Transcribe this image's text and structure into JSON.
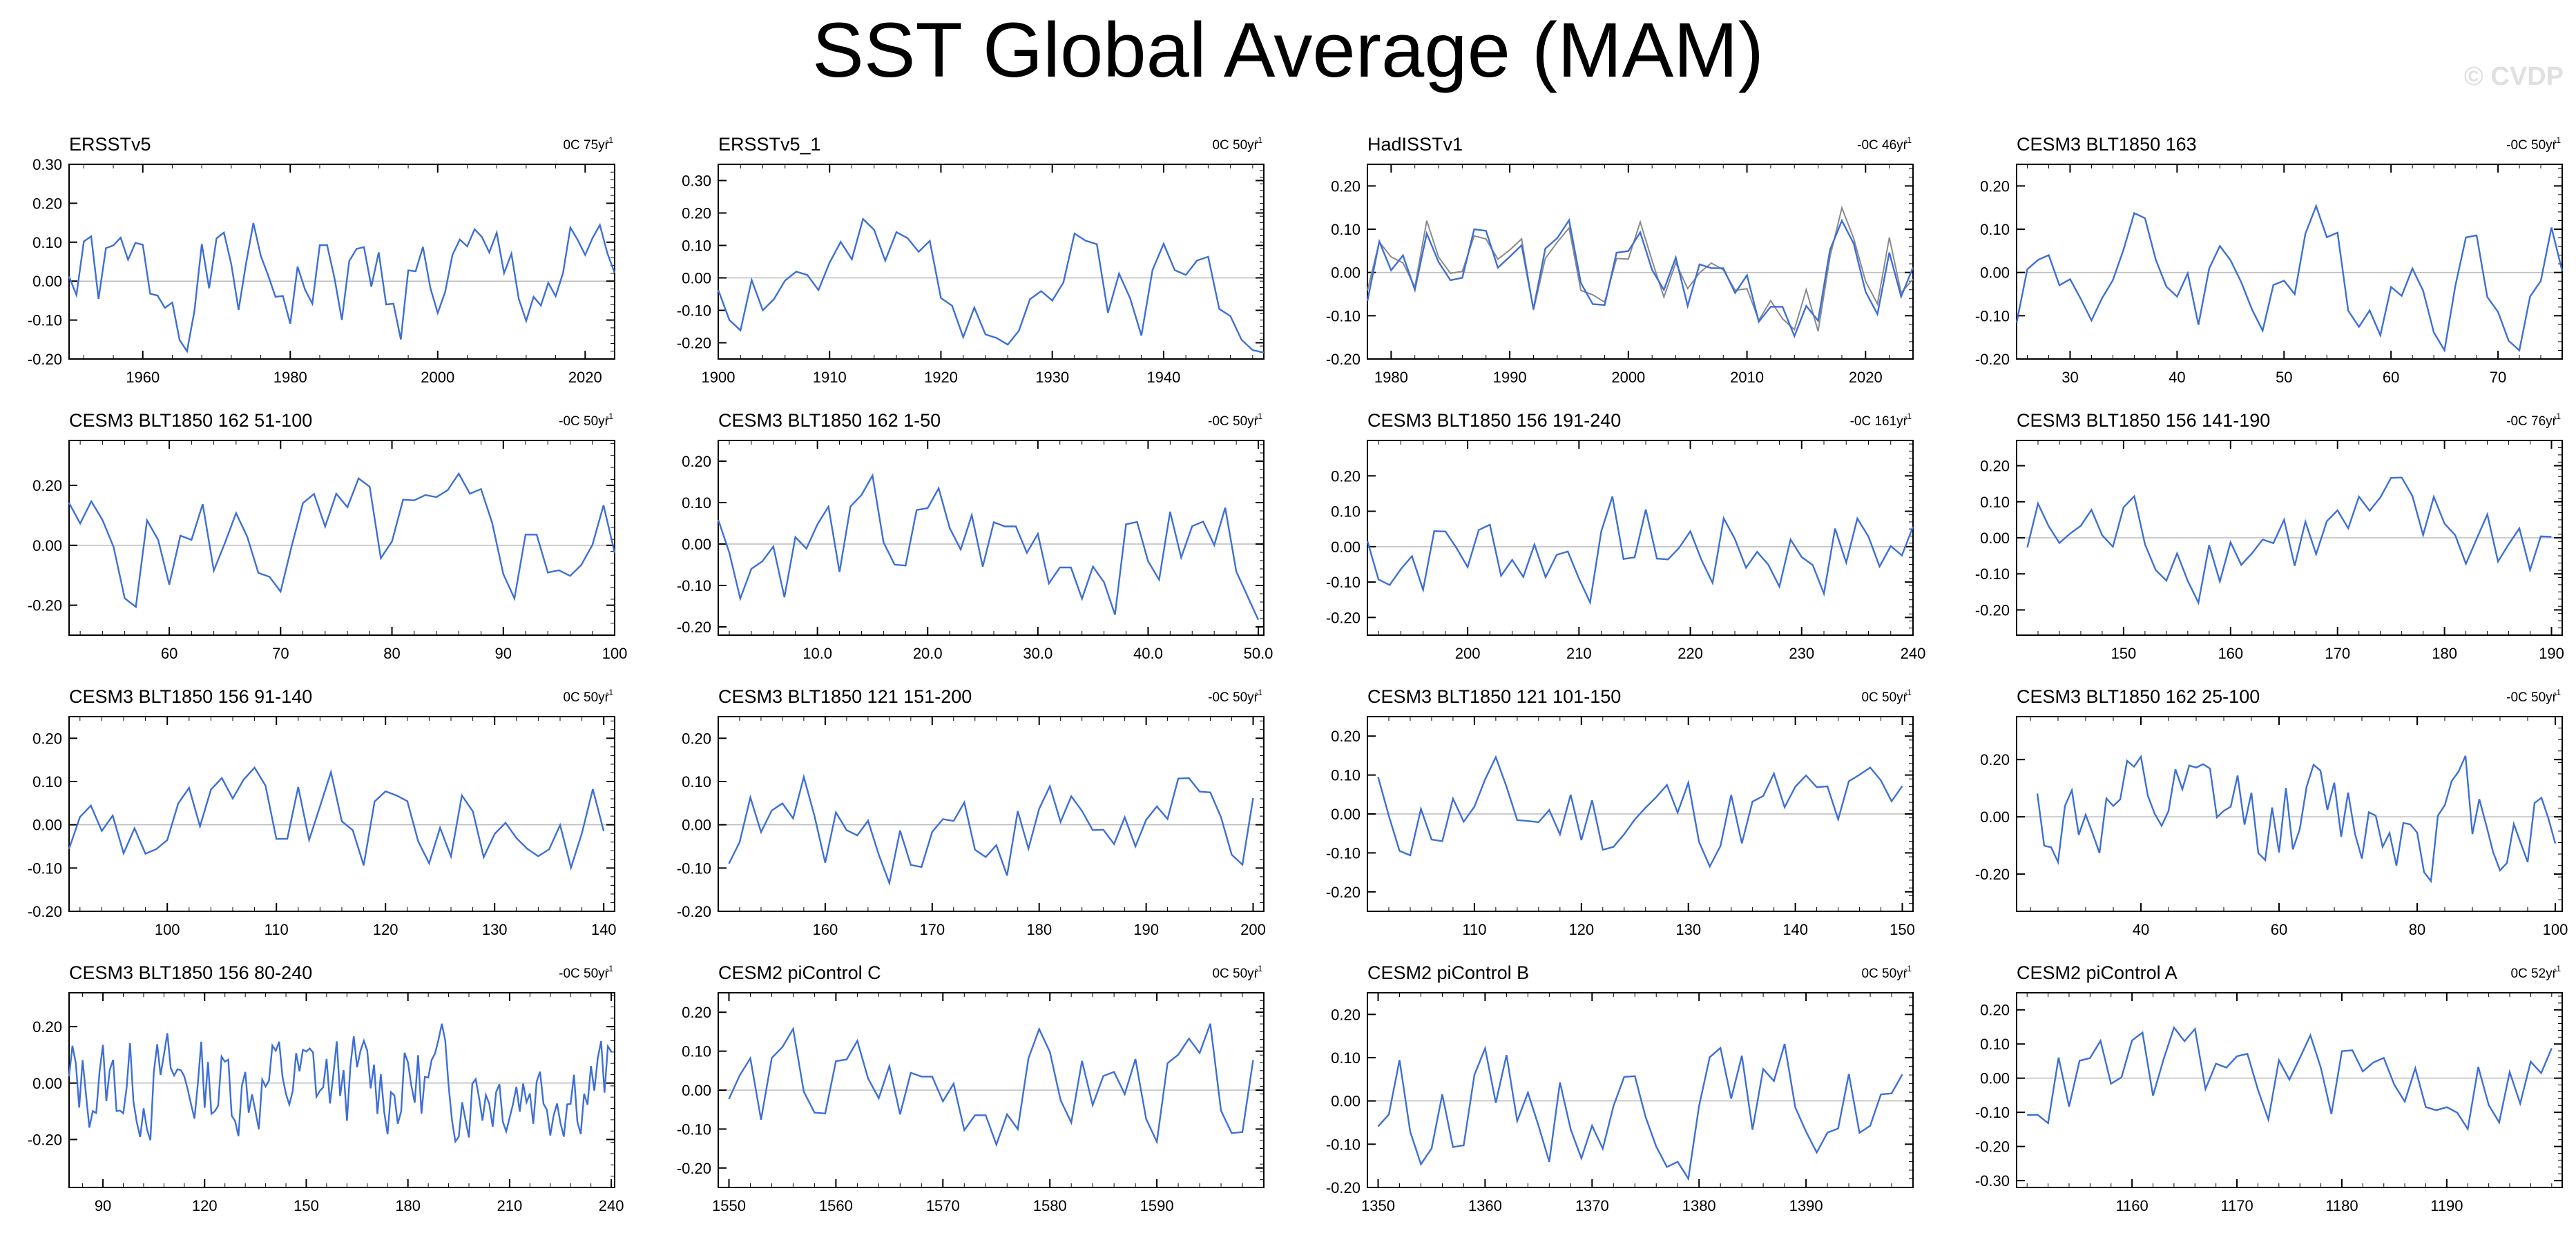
{
  "title": "SST Global Average (MAM)",
  "watermark": "© CVDP",
  "colors": {
    "line": "#3d6fd6",
    "observed_gray": "#8a8a8a",
    "zero_line": "#bbbbbb",
    "frame": "#000000"
  },
  "chart_data": [
    {
      "type": "line",
      "title": "ERSSTv5",
      "trend": "0C 75yr",
      "trend_exp": "-1",
      "xlim": [
        1950,
        2024
      ],
      "ylim": [
        -0.2,
        0.3
      ],
      "xticks": [
        1960,
        1980,
        2000,
        2020
      ],
      "xtick_labels": [
        "1960",
        "1980",
        "2000",
        "2020"
      ],
      "yticks": [
        -0.2,
        -0.1,
        0,
        0.1,
        0.2,
        0.3
      ],
      "ytick_labels": [
        "-0.20",
        "-0.10",
        "0.00",
        "0.10",
        "0.20",
        "0.30"
      ],
      "amp": 0.1,
      "seed": 1,
      "first_year": 1950,
      "last_year": 2024
    },
    {
      "type": "line",
      "title": "ERSSTv5_1",
      "trend": "0C 50yr",
      "trend_exp": "-1",
      "xlim": [
        1900,
        1949
      ],
      "ylim": [
        -0.25,
        0.35
      ],
      "xticks": [
        1900,
        1910,
        1920,
        1930,
        1940
      ],
      "xtick_labels": [
        "1900",
        "1910",
        "1920",
        "1930",
        "1940"
      ],
      "yticks": [
        -0.2,
        -0.1,
        0,
        0.1,
        0.2,
        0.3
      ],
      "ytick_labels": [
        "-0.20",
        "-0.10",
        "0.00",
        "0.10",
        "0.20",
        "0.30"
      ],
      "amp": 0.12,
      "seed": 2,
      "first_year": 1900,
      "last_year": 1949
    },
    {
      "type": "line",
      "title": "HadISSTv1",
      "trend": "-0C 46yr",
      "trend_exp": "-1",
      "xlim": [
        1978,
        2024
      ],
      "ylim": [
        -0.2,
        0.25
      ],
      "xticks": [
        1980,
        1990,
        2000,
        2010,
        2020
      ],
      "xtick_labels": [
        "1980",
        "1990",
        "2000",
        "2010",
        "2020"
      ],
      "yticks": [
        -0.2,
        -0.1,
        0,
        0.1,
        0.2
      ],
      "ytick_labels": [
        "-0.20",
        "-0.10",
        "0.00",
        "0.10",
        "0.20"
      ],
      "amp": 0.09,
      "seed": 3,
      "first_year": 1978,
      "last_year": 2024,
      "second_series": true
    },
    {
      "type": "line",
      "title": "CESM3 BLT1850 163",
      "trend": "-0C 50yr",
      "trend_exp": "-1",
      "xlim": [
        25,
        76
      ],
      "ylim": [
        -0.2,
        0.25
      ],
      "xticks": [
        30,
        40,
        50,
        60,
        70
      ],
      "xtick_labels": [
        "30",
        "40",
        "50",
        "60",
        "70"
      ],
      "yticks": [
        -0.2,
        -0.1,
        0,
        0.1,
        0.2
      ],
      "ytick_labels": [
        "-0.20",
        "-0.10",
        "0.00",
        "0.10",
        "0.20"
      ],
      "amp": 0.1,
      "seed": 4,
      "first_year": 25,
      "last_year": 76
    },
    {
      "type": "line",
      "title": "CESM3 BLT1850 162 51-100",
      "trend": "-0C 50yr",
      "trend_exp": "-1",
      "xlim": [
        51,
        100
      ],
      "ylim": [
        -0.3,
        0.35
      ],
      "xticks": [
        60,
        70,
        80,
        90,
        100
      ],
      "xtick_labels": [
        "60",
        "70",
        "80",
        "90",
        "100"
      ],
      "yticks": [
        -0.2,
        0,
        0.2
      ],
      "ytick_labels": [
        "-0.20",
        "0.00",
        "0.20"
      ],
      "amp": 0.14,
      "seed": 5,
      "first_year": 51,
      "last_year": 100
    },
    {
      "type": "line",
      "title": "CESM3 BLT1850 162 1-50",
      "trend": "-0C 50yr",
      "trend_exp": "-1",
      "xlim": [
        1,
        50.5
      ],
      "ylim": [
        -0.22,
        0.25
      ],
      "xticks": [
        10,
        20,
        30,
        40,
        50
      ],
      "xtick_labels": [
        "10.0",
        "20.0",
        "30.0",
        "40.0",
        "50.0"
      ],
      "yticks": [
        -0.2,
        -0.1,
        0,
        0.1,
        0.2
      ],
      "ytick_labels": [
        "-0.20",
        "-0.10",
        "0.00",
        "0.10",
        "0.20"
      ],
      "amp": 0.1,
      "seed": 6,
      "first_year": 1,
      "last_year": 50
    },
    {
      "type": "line",
      "title": "CESM3 BLT1850 156 191-240",
      "trend": "-0C 161yr",
      "trend_exp": "-1",
      "xlim": [
        191,
        240
      ],
      "ylim": [
        -0.25,
        0.3
      ],
      "xticks": [
        200,
        210,
        220,
        230,
        240
      ],
      "xtick_labels": [
        "200",
        "210",
        "220",
        "230",
        "240"
      ],
      "yticks": [
        -0.2,
        -0.1,
        0,
        0.1,
        0.2
      ],
      "ytick_labels": [
        "-0.20",
        "-0.10",
        "0.00",
        "0.10",
        "0.20"
      ],
      "amp": 0.1,
      "seed": 7,
      "first_year": 191,
      "last_year": 240
    },
    {
      "type": "line",
      "title": "CESM3 BLT1850 156 141-190",
      "trend": "-0C 76yr",
      "trend_exp": "-1",
      "xlim": [
        140,
        191
      ],
      "ylim": [
        -0.27,
        0.27
      ],
      "xticks": [
        150,
        160,
        170,
        180,
        190
      ],
      "xtick_labels": [
        "150",
        "160",
        "170",
        "180",
        "190"
      ],
      "yticks": [
        -0.2,
        -0.1,
        0,
        0.1,
        0.2
      ],
      "ytick_labels": [
        "-0.20",
        "-0.10",
        "0.00",
        "0.10",
        "0.20"
      ],
      "amp": 0.1,
      "seed": 8,
      "first_year": 141,
      "last_year": 190
    },
    {
      "type": "line",
      "title": "CESM3 BLT1850 156 91-140",
      "trend": "0C 50yr",
      "trend_exp": "-1",
      "xlim": [
        91,
        141
      ],
      "ylim": [
        -0.2,
        0.25
      ],
      "xticks": [
        100,
        110,
        120,
        130,
        140
      ],
      "xtick_labels": [
        "100",
        "110",
        "120",
        "130",
        "140"
      ],
      "yticks": [
        -0.2,
        -0.1,
        0,
        0.1,
        0.2
      ],
      "ytick_labels": [
        "-0.20",
        "-0.10",
        "0.00",
        "0.10",
        "0.20"
      ],
      "amp": 0.08,
      "seed": 9,
      "first_year": 91,
      "last_year": 140
    },
    {
      "type": "line",
      "title": "CESM3 BLT1850 121 151-200",
      "trend": "-0C 50yr",
      "trend_exp": "-1",
      "xlim": [
        150,
        201
      ],
      "ylim": [
        -0.2,
        0.25
      ],
      "xticks": [
        160,
        170,
        180,
        190,
        200
      ],
      "xtick_labels": [
        "160",
        "170",
        "180",
        "190",
        "200"
      ],
      "yticks": [
        -0.2,
        -0.1,
        0,
        0.1,
        0.2
      ],
      "ytick_labels": [
        "-0.20",
        "-0.10",
        "0.00",
        "0.10",
        "0.20"
      ],
      "amp": 0.08,
      "seed": 10,
      "first_year": 151,
      "last_year": 200
    },
    {
      "type": "line",
      "title": "CESM3 BLT1850 121 101-150",
      "trend": "0C 50yr",
      "trend_exp": "-1",
      "xlim": [
        100,
        151
      ],
      "ylim": [
        -0.25,
        0.25
      ],
      "xticks": [
        110,
        120,
        130,
        140,
        150
      ],
      "xtick_labels": [
        "110",
        "120",
        "130",
        "140",
        "150"
      ],
      "yticks": [
        -0.2,
        -0.1,
        0,
        0.1,
        0.2
      ],
      "ytick_labels": [
        "-0.20",
        "-0.10",
        "0.00",
        "0.10",
        "0.20"
      ],
      "amp": 0.09,
      "seed": 11,
      "first_year": 101,
      "last_year": 150
    },
    {
      "type": "line",
      "title": "CESM3 BLT1850 162 25-100",
      "trend": "-0C 50yr",
      "trend_exp": "-1",
      "xlim": [
        22,
        101
      ],
      "ylim": [
        -0.33,
        0.35
      ],
      "xticks": [
        40,
        60,
        80,
        100
      ],
      "xtick_labels": [
        "40",
        "60",
        "80",
        "100"
      ],
      "yticks": [
        -0.2,
        0,
        0.2
      ],
      "ytick_labels": [
        "-0.20",
        "0.00",
        "0.20"
      ],
      "amp": 0.13,
      "seed": 12,
      "first_year": 25,
      "last_year": 100
    },
    {
      "type": "line",
      "title": "CESM3 BLT1850 156 80-240",
      "trend": "-0C 50yr",
      "trend_exp": "-1",
      "xlim": [
        80,
        241
      ],
      "ylim": [
        -0.37,
        0.32
      ],
      "xticks": [
        90,
        120,
        150,
        180,
        210,
        240
      ],
      "xtick_labels": [
        "90",
        "120",
        "150",
        "180",
        "210",
        "240"
      ],
      "yticks": [
        -0.2,
        0,
        0.2
      ],
      "ytick_labels": [
        "-0.20",
        "0.00",
        "0.20"
      ],
      "amp": 0.12,
      "seed": 13,
      "first_year": 80,
      "last_year": 240
    },
    {
      "type": "line",
      "title": "CESM2 piControl C",
      "trend": "0C 50yr",
      "trend_exp": "-1",
      "xlim": [
        1549,
        1600
      ],
      "ylim": [
        -0.25,
        0.25
      ],
      "xticks": [
        1550,
        1560,
        1570,
        1580,
        1590
      ],
      "xtick_labels": [
        "1550",
        "1560",
        "1570",
        "1580",
        "1590"
      ],
      "yticks": [
        -0.2,
        -0.1,
        0,
        0.1,
        0.2
      ],
      "ytick_labels": [
        "-0.20",
        "-0.10",
        "0.00",
        "0.10",
        "0.20"
      ],
      "amp": 0.1,
      "seed": 14,
      "first_year": 1550,
      "last_year": 1599
    },
    {
      "type": "line",
      "title": "CESM2 piControl B",
      "trend": "0C 50yr",
      "trend_exp": "-1",
      "xlim": [
        1349,
        1400
      ],
      "ylim": [
        -0.2,
        0.25
      ],
      "xticks": [
        1350,
        1360,
        1370,
        1380,
        1390
      ],
      "xtick_labels": [
        "1350",
        "1360",
        "1370",
        "1380",
        "1390"
      ],
      "yticks": [
        -0.2,
        -0.1,
        0,
        0.1,
        0.2
      ],
      "ytick_labels": [
        "-0.20",
        "-0.10",
        "0.00",
        "0.10",
        "0.20"
      ],
      "amp": 0.09,
      "seed": 15,
      "first_year": 1350,
      "last_year": 1399
    },
    {
      "type": "line",
      "title": "CESM2 piControl A",
      "trend": "0C 52yr",
      "trend_exp": "-1",
      "xlim": [
        1149,
        1201
      ],
      "ylim": [
        -0.32,
        0.25
      ],
      "xticks": [
        1160,
        1170,
        1180,
        1190
      ],
      "xtick_labels": [
        "1160",
        "1170",
        "1180",
        "1190"
      ],
      "yticks": [
        -0.3,
        -0.2,
        -0.1,
        0,
        0.1,
        0.2
      ],
      "ytick_labels": [
        "-0.30",
        "-0.20",
        "-0.10",
        "0.00",
        "0.10",
        "0.20"
      ],
      "amp": 0.1,
      "seed": 16,
      "first_year": 1150,
      "last_year": 1200
    }
  ]
}
